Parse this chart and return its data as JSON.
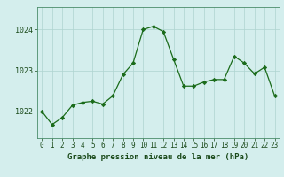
{
  "x": [
    0,
    1,
    2,
    3,
    4,
    5,
    6,
    7,
    8,
    9,
    10,
    11,
    12,
    13,
    14,
    15,
    16,
    17,
    18,
    19,
    20,
    21,
    22,
    23
  ],
  "y": [
    1022.0,
    1021.68,
    1021.85,
    1022.15,
    1022.22,
    1022.25,
    1022.18,
    1022.38,
    1022.9,
    1023.18,
    1024.0,
    1024.08,
    1023.95,
    1023.28,
    1022.62,
    1022.62,
    1022.72,
    1022.78,
    1022.78,
    1023.35,
    1023.18,
    1022.92,
    1023.08,
    1022.38
  ],
  "line_color": "#1a6b1a",
  "marker": "D",
  "marker_size": 2.2,
  "background_color": "#d4eeed",
  "grid_color": "#aed4d0",
  "ylabel_ticks": [
    1022,
    1023,
    1024
  ],
  "xlabel_label": "Graphe pression niveau de la mer (hPa)",
  "xlim": [
    -0.5,
    23.5
  ],
  "ylim": [
    1021.35,
    1024.55
  ],
  "xtick_labels": [
    "0",
    "1",
    "2",
    "3",
    "4",
    "5",
    "6",
    "7",
    "8",
    "9",
    "10",
    "11",
    "12",
    "13",
    "14",
    "15",
    "16",
    "17",
    "18",
    "19",
    "20",
    "21",
    "22",
    "23"
  ],
  "tick_fontsize": 5.5,
  "xlabel_fontsize": 6.5,
  "ylabel_fontsize": 6.0,
  "line_width": 0.9,
  "border_color": "#4a8c6a"
}
